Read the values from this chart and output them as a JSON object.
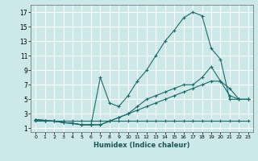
{
  "xlabel": "Humidex (Indice chaleur)",
  "background_color": "#cce8e8",
  "grid_color": "#ffffff",
  "line_color": "#1a6b6b",
  "xlim": [
    -0.5,
    23.5
  ],
  "ylim": [
    0.5,
    18
  ],
  "yticks": [
    1,
    3,
    5,
    7,
    9,
    11,
    13,
    15,
    17
  ],
  "xticks": [
    0,
    1,
    2,
    3,
    4,
    5,
    6,
    7,
    8,
    9,
    10,
    11,
    12,
    13,
    14,
    15,
    16,
    17,
    18,
    19,
    20,
    21,
    22,
    23
  ],
  "lines": [
    {
      "x": [
        0,
        1,
        2,
        3,
        4,
        5,
        6,
        7,
        8,
        9,
        10,
        11,
        12,
        13,
        14,
        15,
        16,
        17,
        18,
        19,
        20,
        21,
        22,
        23
      ],
      "y": [
        2,
        2,
        2,
        2,
        2,
        2,
        2,
        2,
        2,
        2,
        2,
        2,
        2,
        2,
        2,
        2,
        2,
        2,
        2,
        2,
        2,
        2,
        2,
        2
      ]
    },
    {
      "x": [
        0,
        1,
        2,
        3,
        4,
        5,
        6,
        7,
        8,
        9,
        10,
        11,
        12,
        13,
        14,
        15,
        16,
        17,
        18,
        19,
        20,
        21,
        22,
        23
      ],
      "y": [
        2.2,
        2.1,
        2.0,
        1.8,
        1.7,
        1.5,
        1.5,
        1.5,
        2.0,
        2.5,
        3.0,
        3.5,
        4.0,
        4.5,
        5.0,
        5.5,
        6.0,
        6.5,
        7.0,
        7.5,
        7.5,
        6.5,
        5.0,
        5.0
      ]
    },
    {
      "x": [
        0,
        1,
        2,
        3,
        4,
        5,
        6,
        7,
        8,
        9,
        10,
        11,
        12,
        13,
        14,
        15,
        16,
        17,
        18,
        19,
        20,
        21,
        22,
        23
      ],
      "y": [
        2.2,
        2.1,
        2.0,
        1.8,
        1.7,
        1.5,
        1.5,
        8.0,
        4.5,
        4.0,
        5.5,
        7.5,
        9.0,
        11.0,
        13.0,
        14.5,
        16.2,
        17.0,
        16.5,
        12.0,
        10.5,
        5.0,
        5.0,
        5.0
      ]
    },
    {
      "x": [
        0,
        1,
        2,
        3,
        4,
        5,
        6,
        7,
        8,
        9,
        10,
        11,
        12,
        13,
        14,
        15,
        16,
        17,
        18,
        19,
        20,
        21,
        22,
        23
      ],
      "y": [
        2.2,
        2.1,
        2.0,
        1.8,
        1.7,
        1.5,
        1.5,
        1.5,
        2.0,
        2.5,
        3.0,
        4.0,
        5.0,
        5.5,
        6.0,
        6.5,
        7.0,
        7.0,
        8.0,
        9.5,
        7.5,
        5.5,
        5.0,
        5.0
      ]
    }
  ]
}
